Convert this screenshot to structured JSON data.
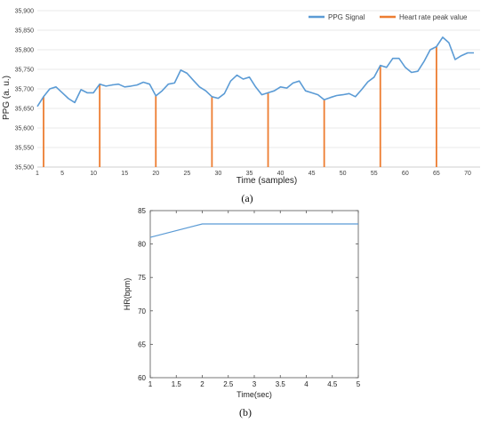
{
  "colors": {
    "ppg": "#5b9bd5",
    "peak": "#ed7d31",
    "hr": "#5b9bd5"
  },
  "chart_data": [
    {
      "type": "line",
      "caption": "(a)",
      "title": "",
      "xlabel": "Time (samples)",
      "ylabel": "PPG (a. u.)",
      "xlim": [
        1,
        72
      ],
      "ylim": [
        35500,
        35900
      ],
      "x_ticks": [
        1,
        5,
        10,
        15,
        20,
        25,
        30,
        35,
        40,
        45,
        50,
        55,
        60,
        65,
        70
      ],
      "y_ticks": [
        "35,500",
        "35,550",
        "35,600",
        "35,650",
        "35,700",
        "35,750",
        "35,800",
        "35,850",
        "35,900"
      ],
      "y_tick_values": [
        35500,
        35550,
        35600,
        35650,
        35700,
        35750,
        35800,
        35850,
        35900
      ],
      "grid": "horizontal",
      "legend": "top-right",
      "series": [
        {
          "name": "PPG Signal",
          "x": [
            1,
            2,
            3,
            4,
            5,
            6,
            7,
            8,
            9,
            10,
            11,
            12,
            13,
            14,
            15,
            16,
            17,
            18,
            19,
            20,
            21,
            22,
            23,
            24,
            25,
            26,
            27,
            28,
            29,
            30,
            31,
            32,
            33,
            34,
            35,
            36,
            37,
            38,
            39,
            40,
            41,
            42,
            43,
            44,
            45,
            46,
            47,
            48,
            49,
            50,
            51,
            52,
            53,
            54,
            55,
            56,
            57,
            58,
            59,
            60,
            61,
            62,
            63,
            64,
            65,
            66,
            67,
            68,
            69,
            70,
            71
          ],
          "values": [
            35655,
            35680,
            35700,
            35705,
            35690,
            35675,
            35665,
            35698,
            35690,
            35690,
            35712,
            35707,
            35710,
            35712,
            35705,
            35707,
            35710,
            35717,
            35712,
            35682,
            35695,
            35712,
            35715,
            35748,
            35740,
            35722,
            35705,
            35695,
            35680,
            35676,
            35688,
            35720,
            35735,
            35725,
            35730,
            35705,
            35685,
            35690,
            35695,
            35705,
            35702,
            35715,
            35720,
            35695,
            35690,
            35685,
            35672,
            35678,
            35683,
            35685,
            35688,
            35680,
            35698,
            35718,
            35730,
            35760,
            35755,
            35778,
            35778,
            35755,
            35742,
            35745,
            35770,
            35800,
            35808,
            35832,
            35818,
            35775,
            35785,
            35792,
            35792
          ]
        },
        {
          "name": "Heart rate peak value",
          "x": [
            2,
            11,
            20,
            29,
            38,
            47,
            56,
            65
          ],
          "values": [
            35680,
            35712,
            35682,
            35680,
            35690,
            35672,
            35760,
            35808
          ]
        }
      ]
    },
    {
      "type": "line",
      "caption": "(b)",
      "title": "",
      "xlabel": "Time(sec)",
      "ylabel": "HR(bpm)",
      "xlim": [
        1,
        5
      ],
      "ylim": [
        60,
        85
      ],
      "x_ticks": [
        "1",
        "1.5",
        "2",
        "2.5",
        "3",
        "3.5",
        "4",
        "4.5",
        "5"
      ],
      "x_tick_values": [
        1,
        1.5,
        2,
        2.5,
        3,
        3.5,
        4,
        4.5,
        5
      ],
      "y_ticks": [
        "60",
        "65",
        "70",
        "75",
        "80",
        "85"
      ],
      "y_tick_values": [
        60,
        65,
        70,
        75,
        80,
        85
      ],
      "grid": "off",
      "series": [
        {
          "x": [
            1,
            2,
            3,
            4,
            5
          ],
          "values": [
            81,
            83,
            83,
            83,
            83
          ]
        }
      ]
    }
  ]
}
